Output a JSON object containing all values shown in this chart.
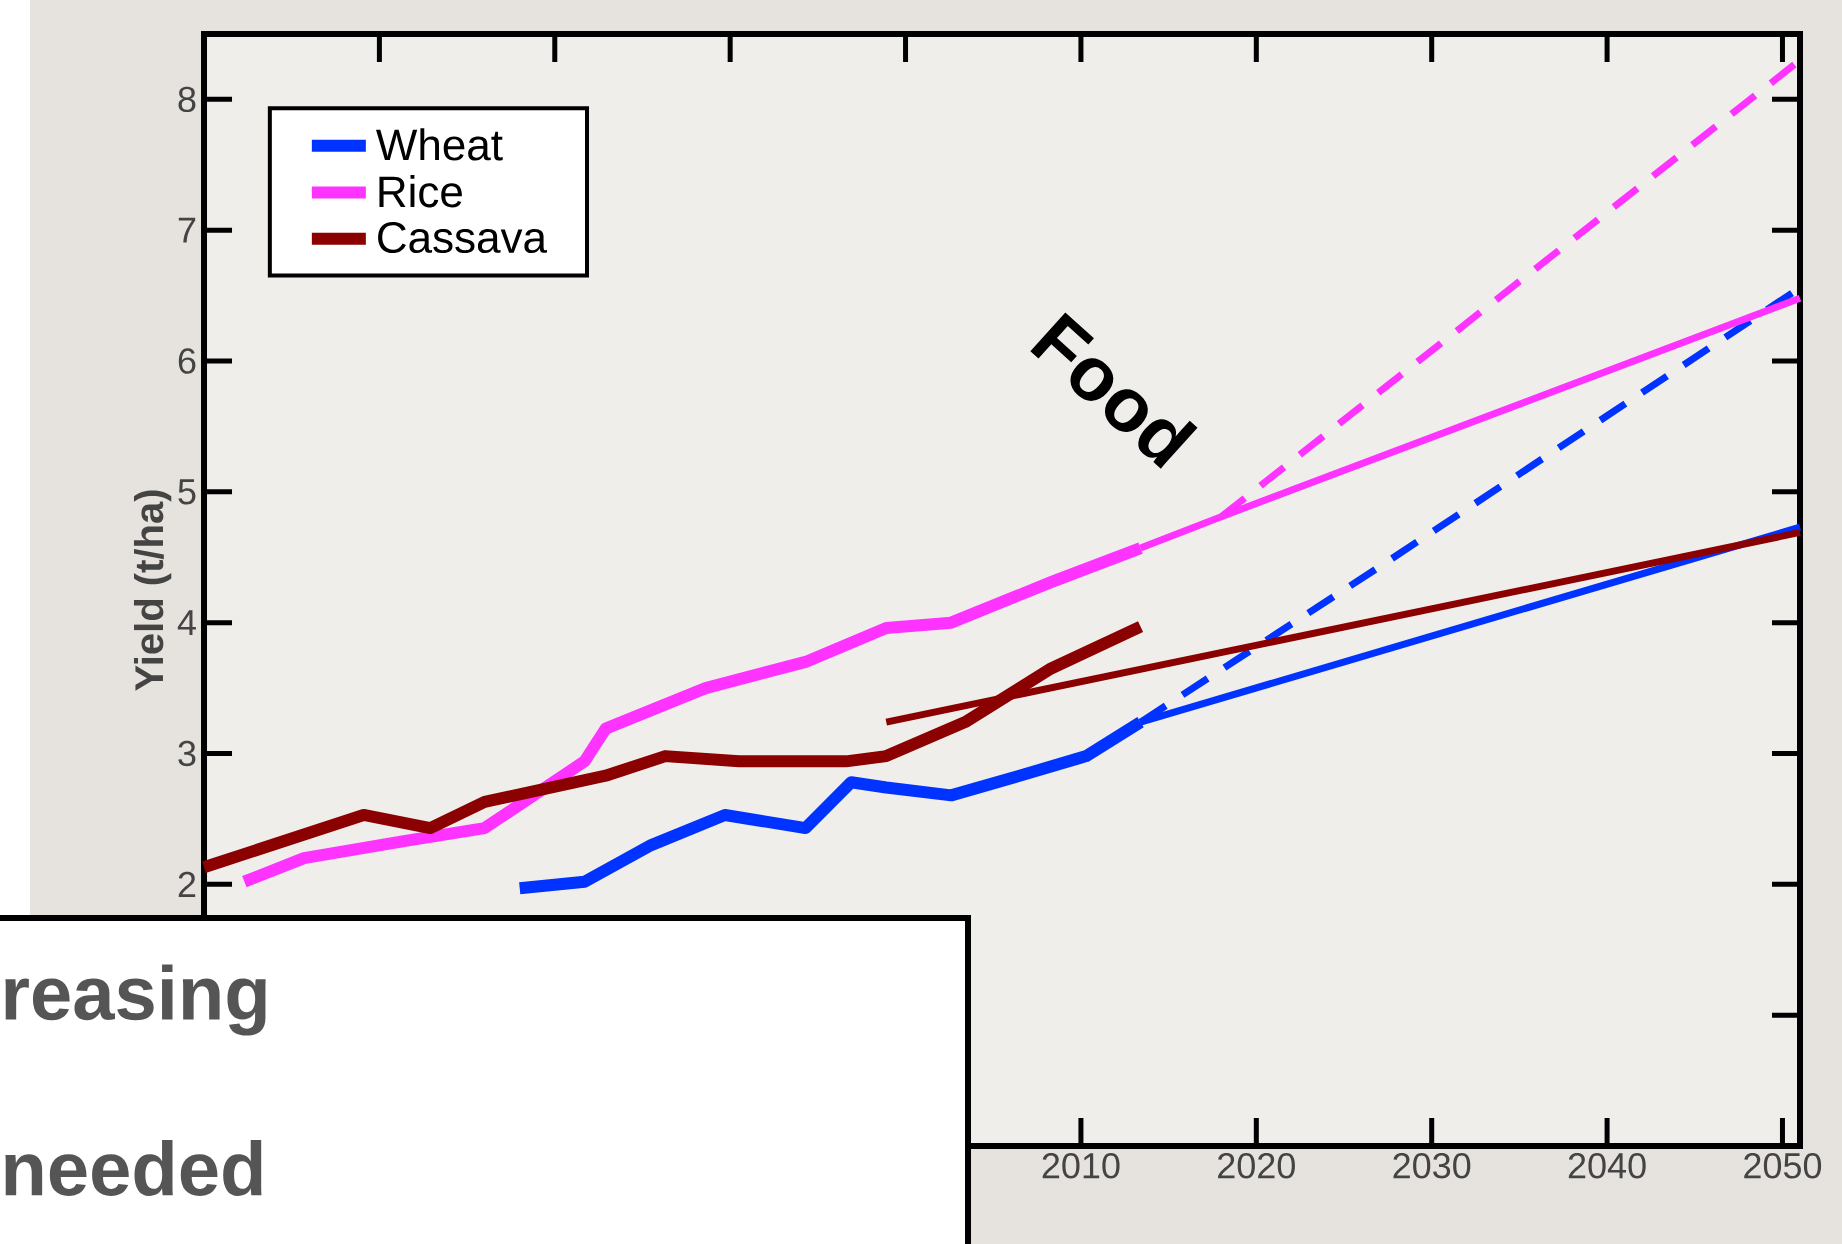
{
  "chart_data": {
    "type": "line",
    "ylabel": "Yield (t/ha)",
    "annotations": [
      "Food",
      "reasing",
      "needed"
    ],
    "xlim": [
      1960,
      2051
    ],
    "ylim": [
      0,
      8.5
    ],
    "xticks": [
      {
        "value": 1970,
        "label": null
      },
      {
        "value": 1980,
        "label": null
      },
      {
        "value": 1990,
        "label": null
      },
      {
        "value": 2000,
        "label": null
      },
      2010,
      2020,
      2030,
      2040,
      2050
    ],
    "yticks": [
      {
        "value": 1,
        "label": null
      },
      2,
      3,
      4,
      5,
      6,
      7,
      8
    ],
    "legend": "top left",
    "series": [
      {
        "name": "Wheat",
        "color": "#0033ff",
        "x": [
          1978,
          1981.7,
          1985.5,
          1989.7,
          1994.3,
          1996.9,
          1998.9,
          2002.6,
          2006.5,
          2010.3,
          2013.4
        ],
        "values": [
          1.97,
          2.02,
          2.3,
          2.53,
          2.43,
          2.78,
          2.74,
          2.68,
          2.83,
          2.98,
          3.24
        ]
      },
      {
        "name": "Rice",
        "color": "#ff33ff",
        "x": [
          1962.3,
          1965.7,
          1971.4,
          1976,
          1981.7,
          1982.9,
          1988.6,
          1994.3,
          1998.9,
          2002.6,
          2008.3,
          2013.4
        ],
        "values": [
          2.02,
          2.2,
          2.33,
          2.43,
          2.94,
          3.19,
          3.5,
          3.7,
          3.96,
          4.0,
          4.31,
          4.57
        ]
      },
      {
        "name": "Cassava",
        "color": "#8b0000",
        "x": [
          1960,
          1969.1,
          1972.9,
          1976,
          1982.9,
          1986.3,
          1990.5,
          1996.6,
          1998.9,
          2003.4,
          2008.3,
          2013.4
        ],
        "values": [
          2.13,
          2.53,
          2.43,
          2.63,
          2.83,
          2.98,
          2.94,
          2.94,
          2.98,
          3.24,
          3.65,
          3.97
        ]
      },
      {
        "color": "#0033ff",
        "x": [
          2013.4,
          2051
        ],
        "values": [
          3.24,
          4.73
        ]
      },
      {
        "color": "#0033ff",
        "line_style": "dashed",
        "x": [
          2013.4,
          2027.4,
          2051
        ],
        "values": [
          3.24,
          4.46,
          6.56
        ]
      },
      {
        "color": "#ff33ff",
        "x": [
          2013.4,
          2018,
          2051
        ],
        "values": [
          4.57,
          4.81,
          6.48
        ]
      },
      {
        "color": "#ff33ff",
        "line_style": "dashed",
        "x": [
          2018,
          2051
        ],
        "values": [
          4.81,
          8.3
        ]
      },
      {
        "color": "#8b0000",
        "x": [
          1998.9,
          2051
        ],
        "values": [
          3.24,
          4.69
        ]
      }
    ]
  }
}
